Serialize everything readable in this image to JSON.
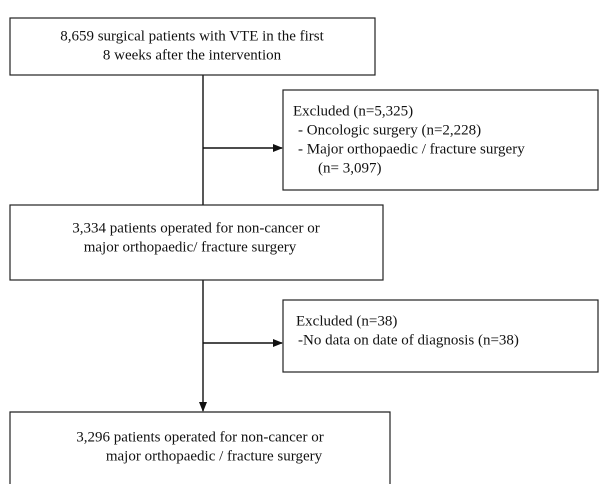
{
  "nodes": [
    {
      "lines": [
        "8,659 surgical patients with VTE in the first",
        "8 weeks after the intervention"
      ]
    },
    {
      "lines": [
        "Excluded (n=5,325)",
        "- Oncologic surgery (n=2,228)",
        "- Major orthopaedic / fracture surgery",
        "(n= 3,097)"
      ]
    },
    {
      "lines": [
        "3,334 patients operated for non-cancer or",
        "major orthopaedic/ fracture surgery"
      ]
    },
    {
      "lines": [
        "Excluded (n=38)",
        "-No data on date of diagnosis (n=38)"
      ]
    },
    {
      "lines": [
        "3,296 patients operated for non-cancer or",
        "major orthopaedic / fracture surgery"
      ]
    }
  ]
}
